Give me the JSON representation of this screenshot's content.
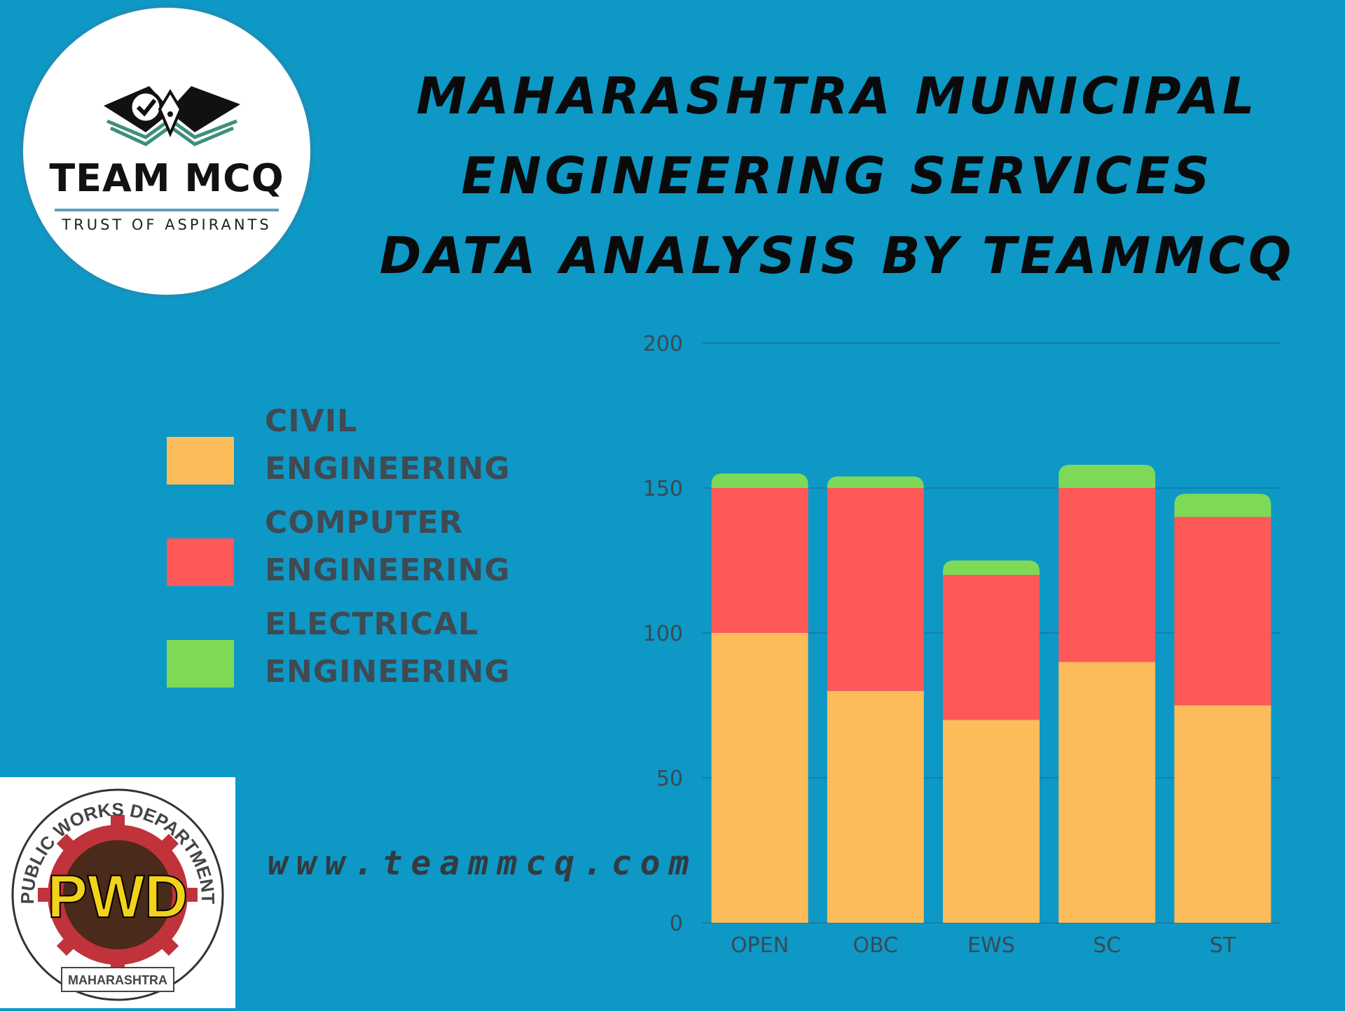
{
  "logo": {
    "name": "TEAM MCQ",
    "tagline": "TRUST OF ASPIRANTS"
  },
  "title": {
    "line1": "MAHARASHTRA MUNICIPAL",
    "line2": "ENGINEERING SERVICES",
    "line3": "DATA ANALYSIS BY TEAMMCQ"
  },
  "legend": [
    {
      "line1": "CIVIL",
      "line2": "ENGINEERING",
      "color": "#fdbc5a"
    },
    {
      "line1": "COMPUTER",
      "line2": "ENGINEERING",
      "color": "#fe5858"
    },
    {
      "line1": "ELECTRICAL",
      "line2": "ENGINEERING",
      "color": "#7ed957"
    }
  ],
  "website": "www.teammcq.com",
  "pwd_logo": {
    "ring_text": "PUBLIC WORKS DEPARTMENT",
    "center_text": "PWD",
    "banner_text": "MAHARASHTRA"
  },
  "chart_data": {
    "type": "bar",
    "stacked": true,
    "categories": [
      "OPEN",
      "OBC",
      "EWS",
      "SC",
      "ST"
    ],
    "series": [
      {
        "name": "CIVIL ENGINEERING",
        "color": "#fdbc5a",
        "values": [
          100,
          80,
          70,
          90,
          75
        ]
      },
      {
        "name": "COMPUTER ENGINEERING",
        "color": "#fe5858",
        "values": [
          50,
          70,
          50,
          60,
          65
        ]
      },
      {
        "name": "ELECTRICAL ENGINEERING",
        "color": "#7ed957",
        "values": [
          5,
          4,
          5,
          8,
          8
        ]
      }
    ],
    "ylim": [
      0,
      200
    ],
    "yticks": [
      0,
      50,
      100,
      150,
      200
    ],
    "grid": true,
    "xlabel": "",
    "ylabel": ""
  }
}
